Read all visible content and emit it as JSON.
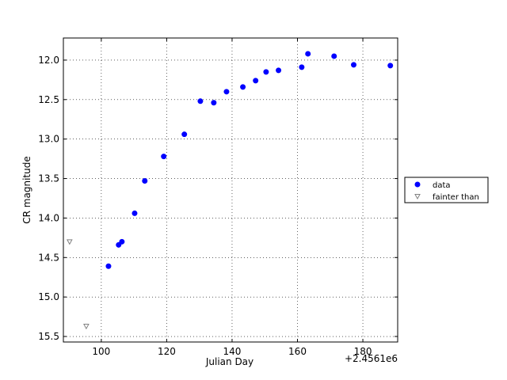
{
  "chart_data": {
    "type": "scatter",
    "xlabel": "Julian Day",
    "ylabel": "CR magnitude",
    "offset_text": "+2.4561e6",
    "xlim": [
      88.4,
      190.65
    ],
    "xticks": [
      100,
      120,
      140,
      160,
      180
    ],
    "ylim": [
      15.57,
      11.72
    ],
    "yticks": [
      {
        "value": 12,
        "label": "12.0"
      },
      12.5,
      {
        "value": 13,
        "label": "13.0"
      },
      13.5,
      {
        "value": 14,
        "label": "14.0"
      },
      14.5,
      {
        "value": 15,
        "label": "15.0"
      },
      15.5
    ],
    "grid": true,
    "legend": "outside right",
    "series": [
      {
        "name": "data",
        "color": "#0000ff",
        "marker": "circle",
        "x": [
          102.2,
          105.3,
          106.3,
          110.2,
          113.3,
          119.1,
          125.4,
          130.3,
          134.4,
          138.3,
          143.3,
          147.2,
          150.4,
          154.2,
          161.3,
          163.2,
          171.2,
          177.2,
          188.4
        ],
        "values": [
          14.61,
          14.34,
          14.3,
          13.94,
          13.53,
          13.22,
          12.94,
          12.52,
          12.54,
          12.4,
          12.34,
          12.26,
          12.15,
          12.13,
          12.09,
          11.92,
          11.95,
          12.06,
          12.07
        ]
      },
      {
        "name": "fainter than",
        "color": "#808080",
        "marker": "triangle-down",
        "x": [
          90.3,
          95.4
        ],
        "values": [
          14.3,
          15.37
        ]
      }
    ]
  }
}
